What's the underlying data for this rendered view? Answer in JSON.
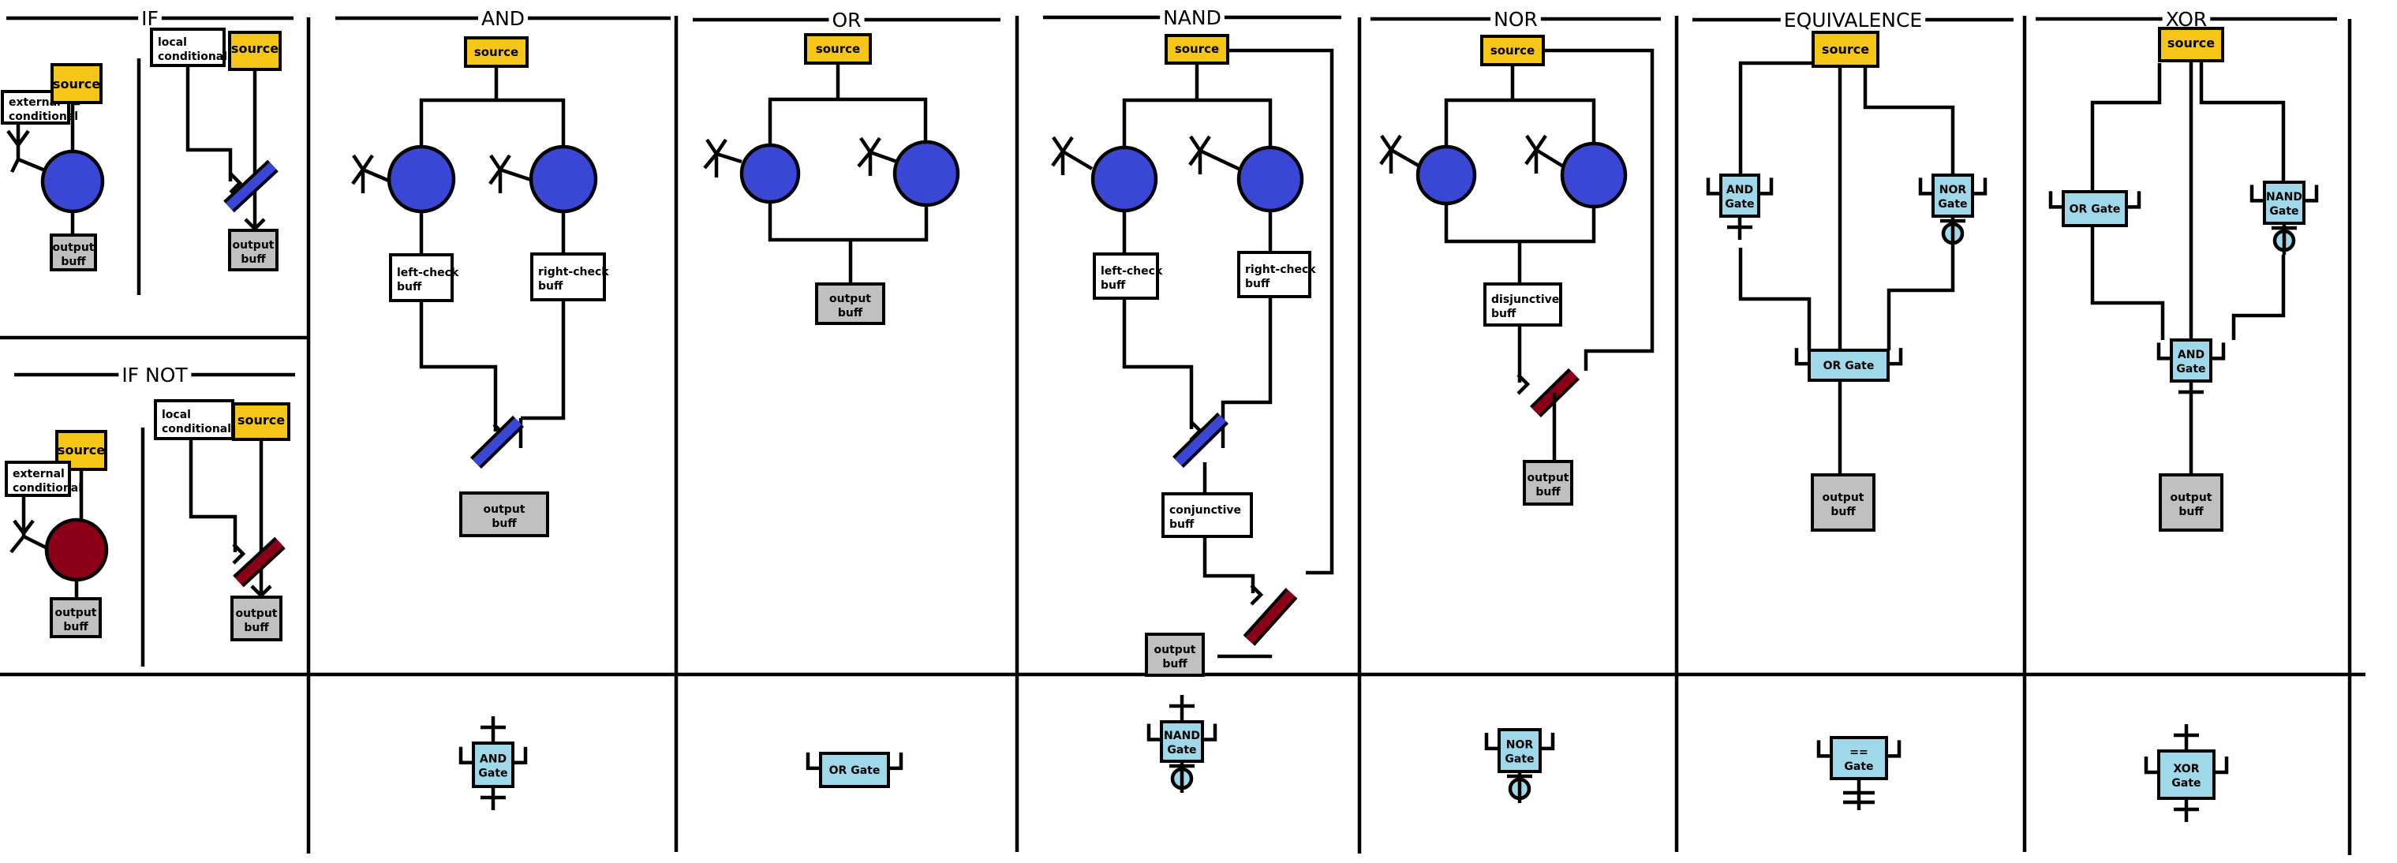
{
  "sections": {
    "if": "IF",
    "if_not": "IF NOT",
    "and": "AND",
    "or": "OR",
    "nand": "NAND",
    "nor": "NOR",
    "equivalence": "EQUIVALENCE",
    "xor": "XOR"
  },
  "labels": {
    "source": "source",
    "output": "output",
    "buff": "buff",
    "external": "external",
    "conditional": "conditional",
    "local": "local",
    "left_check": "left-check",
    "right_check": "right-check",
    "conjunctive": "conjunctive",
    "disjunctive": "disjunctive",
    "and_gate": "AND Gate",
    "and_word": "AND",
    "or_gate": "OR Gate",
    "nand_word": "NAND",
    "nor_word": "NOR",
    "xor_word": "XOR",
    "gate_word": "Gate",
    "equiv_symbol": "=="
  },
  "colors": {
    "source": "#f5c518",
    "output": "#c0c0c0",
    "label_box": "#ffffff",
    "transistor_blue": "#3a47d4",
    "transistor_red": "#8b0016",
    "gate_fill": "#9fd8e8",
    "line": "#000000"
  }
}
